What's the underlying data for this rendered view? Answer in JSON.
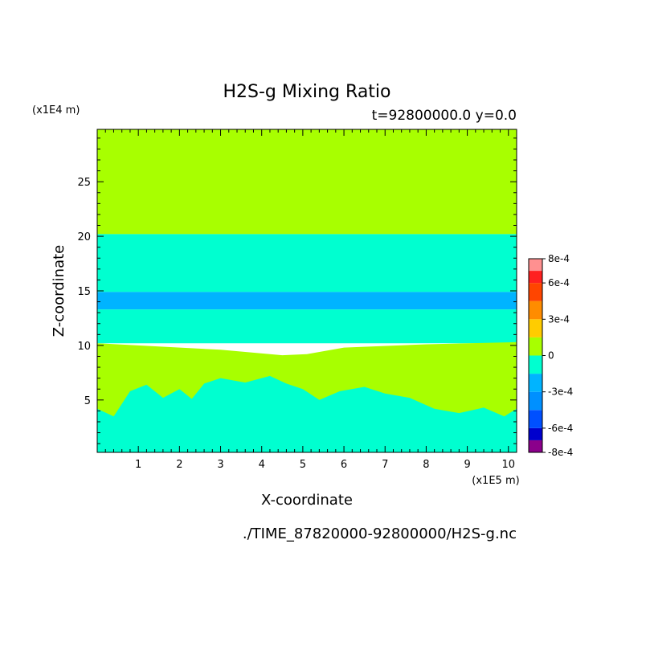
{
  "chart_data": {
    "type": "heatmap",
    "title": "H2S-g Mixing Ratio",
    "subtitle": "t=92800000.0 y=0.0",
    "xlabel": "X-coordinate",
    "ylabel": "Z-coordinate",
    "x_unit": "(x1E5 m)",
    "y_unit": "(x1E4 m)",
    "xlim": [
      0,
      10.2
    ],
    "ylim": [
      0.2,
      29.8
    ],
    "x_ticks": [
      1,
      2,
      3,
      4,
      5,
      6,
      7,
      8,
      9,
      10
    ],
    "y_ticks": [
      5,
      10,
      15,
      20,
      25
    ],
    "x_tick_labels": [
      "1",
      "2",
      "3",
      "4",
      "5",
      "6",
      "7",
      "8",
      "9",
      "10"
    ],
    "y_tick_labels": [
      "5",
      "10",
      "15",
      "20",
      "25"
    ],
    "colorbar": {
      "placement": "right",
      "levels": [
        -0.0008,
        -0.0007,
        -0.0006,
        -0.00045,
        -0.0003,
        -0.00015,
        0,
        0.00015,
        0.0003,
        0.00045,
        0.0006,
        0.0007,
        0.0008
      ],
      "colors": [
        "#8b008b",
        "#0000cd",
        "#0050ff",
        "#0090ff",
        "#00b4ff",
        "#00ffd0",
        "#a8ff00",
        "#ffcc00",
        "#ff8c00",
        "#ff4500",
        "#ff2020",
        "#ff9090"
      ],
      "tick_values": [
        0.0008,
        0.0006,
        0.0003,
        0,
        -0.0003,
        -0.0006,
        -0.0008
      ],
      "tick_labels": [
        "8e-4",
        "6e-4",
        "3e-4",
        "0",
        "-3e-4",
        "-6e-4",
        "-8e-4"
      ]
    },
    "regions": [
      {
        "name": "upper-band",
        "color": "#a8ff00",
        "z_range": [
          20.2,
          29.8
        ]
      },
      {
        "name": "middle-band",
        "color": "#00ffd0",
        "z_range": [
          14.9,
          20.2
        ]
      },
      {
        "name": "negative-stripe",
        "color": "#00b4ff",
        "z_range": [
          13.3,
          14.9
        ]
      },
      {
        "name": "lower-middle-band",
        "color": "#00ffd0",
        "z_range": [
          10.2,
          13.3
        ]
      },
      {
        "name": "lower-green-layer",
        "color": "#a8ff00",
        "boundary_top": [
          [
            0,
            10.2
          ],
          [
            1.5,
            9.9
          ],
          [
            3,
            9.6
          ],
          [
            4.5,
            9.1
          ],
          [
            5.1,
            9.2
          ],
          [
            6,
            9.8
          ],
          [
            8,
            10.1
          ],
          [
            10.2,
            10.3
          ]
        ]
      },
      {
        "name": "bottom-band",
        "color": "#00ffd0",
        "boundary_top": [
          [
            0,
            4.2
          ],
          [
            0.4,
            3.5
          ],
          [
            0.8,
            5.8
          ],
          [
            1.2,
            6.4
          ],
          [
            1.6,
            5.2
          ],
          [
            2.0,
            6.0
          ],
          [
            2.3,
            5.1
          ],
          [
            2.6,
            6.5
          ],
          [
            3.0,
            7.0
          ],
          [
            3.6,
            6.6
          ],
          [
            4.2,
            7.2
          ],
          [
            4.6,
            6.5
          ],
          [
            5.0,
            6.0
          ],
          [
            5.4,
            5.0
          ],
          [
            5.9,
            5.8
          ],
          [
            6.5,
            6.2
          ],
          [
            7.0,
            5.6
          ],
          [
            7.6,
            5.2
          ],
          [
            8.2,
            4.2
          ],
          [
            8.8,
            3.8
          ],
          [
            9.4,
            4.3
          ],
          [
            9.9,
            3.5
          ],
          [
            10.2,
            4.2
          ]
        ]
      }
    ]
  },
  "footer": {
    "source": "./TIME_87820000-92800000/H2S-g.nc"
  },
  "colors": {
    "positive_small": "#a8ff00",
    "negative_small": "#00ffd0",
    "negative_medium": "#00b4ff"
  }
}
